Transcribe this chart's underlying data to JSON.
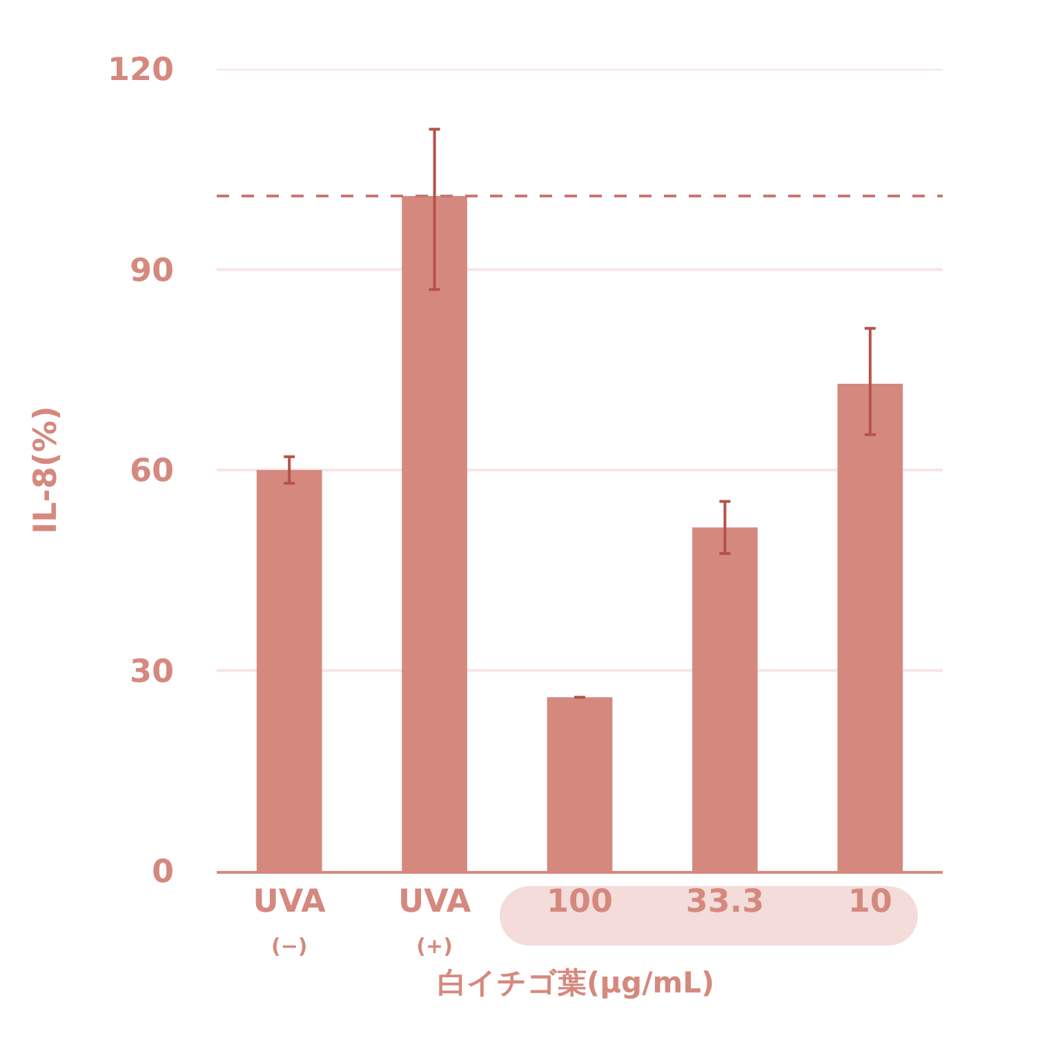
{
  "chart_data": {
    "type": "bar",
    "categories": [
      "UVA\n(−)",
      "UVA\n(+)",
      "100",
      "33.3",
      "10"
    ],
    "values": [
      60,
      101,
      26,
      51.4,
      72.9
    ],
    "errors": [
      2,
      [
        87,
        111
      ],
      null,
      [
        47.5,
        55.3
      ],
      [
        65.3,
        81.2
      ]
    ],
    "color": "#d5897e",
    "ylabel": "IL-8(%)",
    "xlabel": "白イチゴ葉(μg/mL)",
    "ylim": [
      0,
      120
    ],
    "yticks": [
      0,
      30,
      60,
      90,
      120
    ],
    "grid": "y",
    "legend": false,
    "ref_lines": [
      {
        "axis": "y",
        "value": 101,
        "color": "#c8766f",
        "line_style": "dashed"
      }
    ]
  }
}
